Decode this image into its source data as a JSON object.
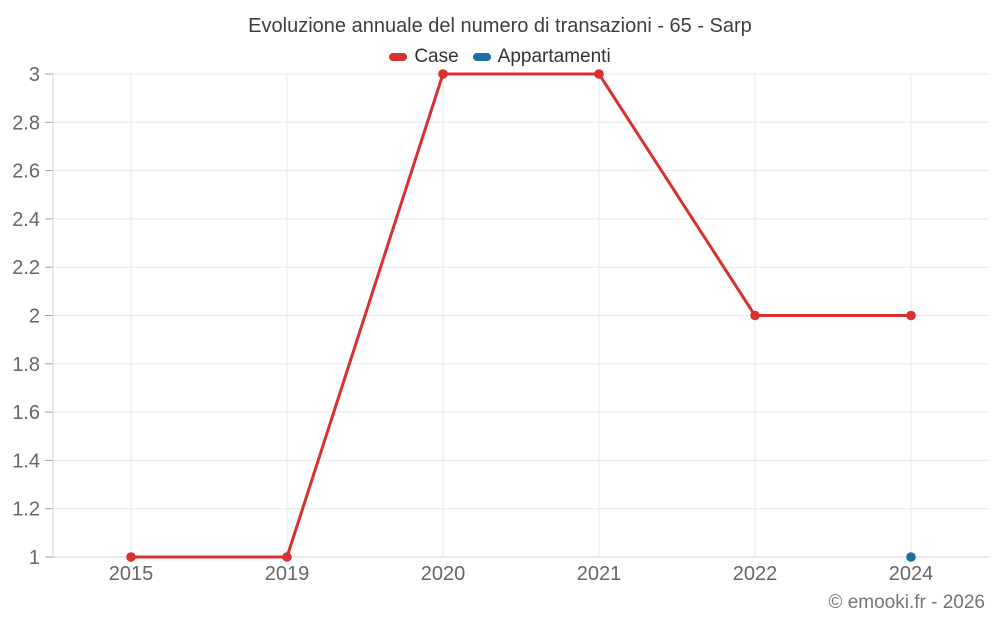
{
  "chart_data": {
    "type": "line",
    "title": "Evoluzione annuale del numero di transazioni - 65 - Sarp",
    "categories": [
      "2015",
      "2019",
      "2020",
      "2021",
      "2022",
      "2024"
    ],
    "series": [
      {
        "name": "Case",
        "color": "#d93030",
        "values": [
          1,
          1,
          3,
          3,
          2,
          2
        ]
      },
      {
        "name": "Appartamenti",
        "color": "#1b6fa3",
        "values": [
          null,
          null,
          null,
          null,
          null,
          1
        ]
      }
    ],
    "xlabel": "",
    "ylabel": "",
    "ylim": [
      1,
      3
    ],
    "yticks": [
      "1",
      "1.2",
      "1.4",
      "1.6",
      "1.8",
      "2",
      "2.2",
      "2.4",
      "2.6",
      "2.8",
      "3"
    ],
    "grid": true,
    "legend_position": "top",
    "credits": "© emooki.fr - 2026",
    "colors": {
      "grid": "#e8e8e8",
      "axis_line": "#d6d6d6",
      "tick_mark": "#9e9e9e",
      "axis_label": "#666666",
      "title_text": "#3e3e3e",
      "legend_text": "#333333",
      "credits_text": "#757575",
      "background": "#ffffff"
    }
  }
}
